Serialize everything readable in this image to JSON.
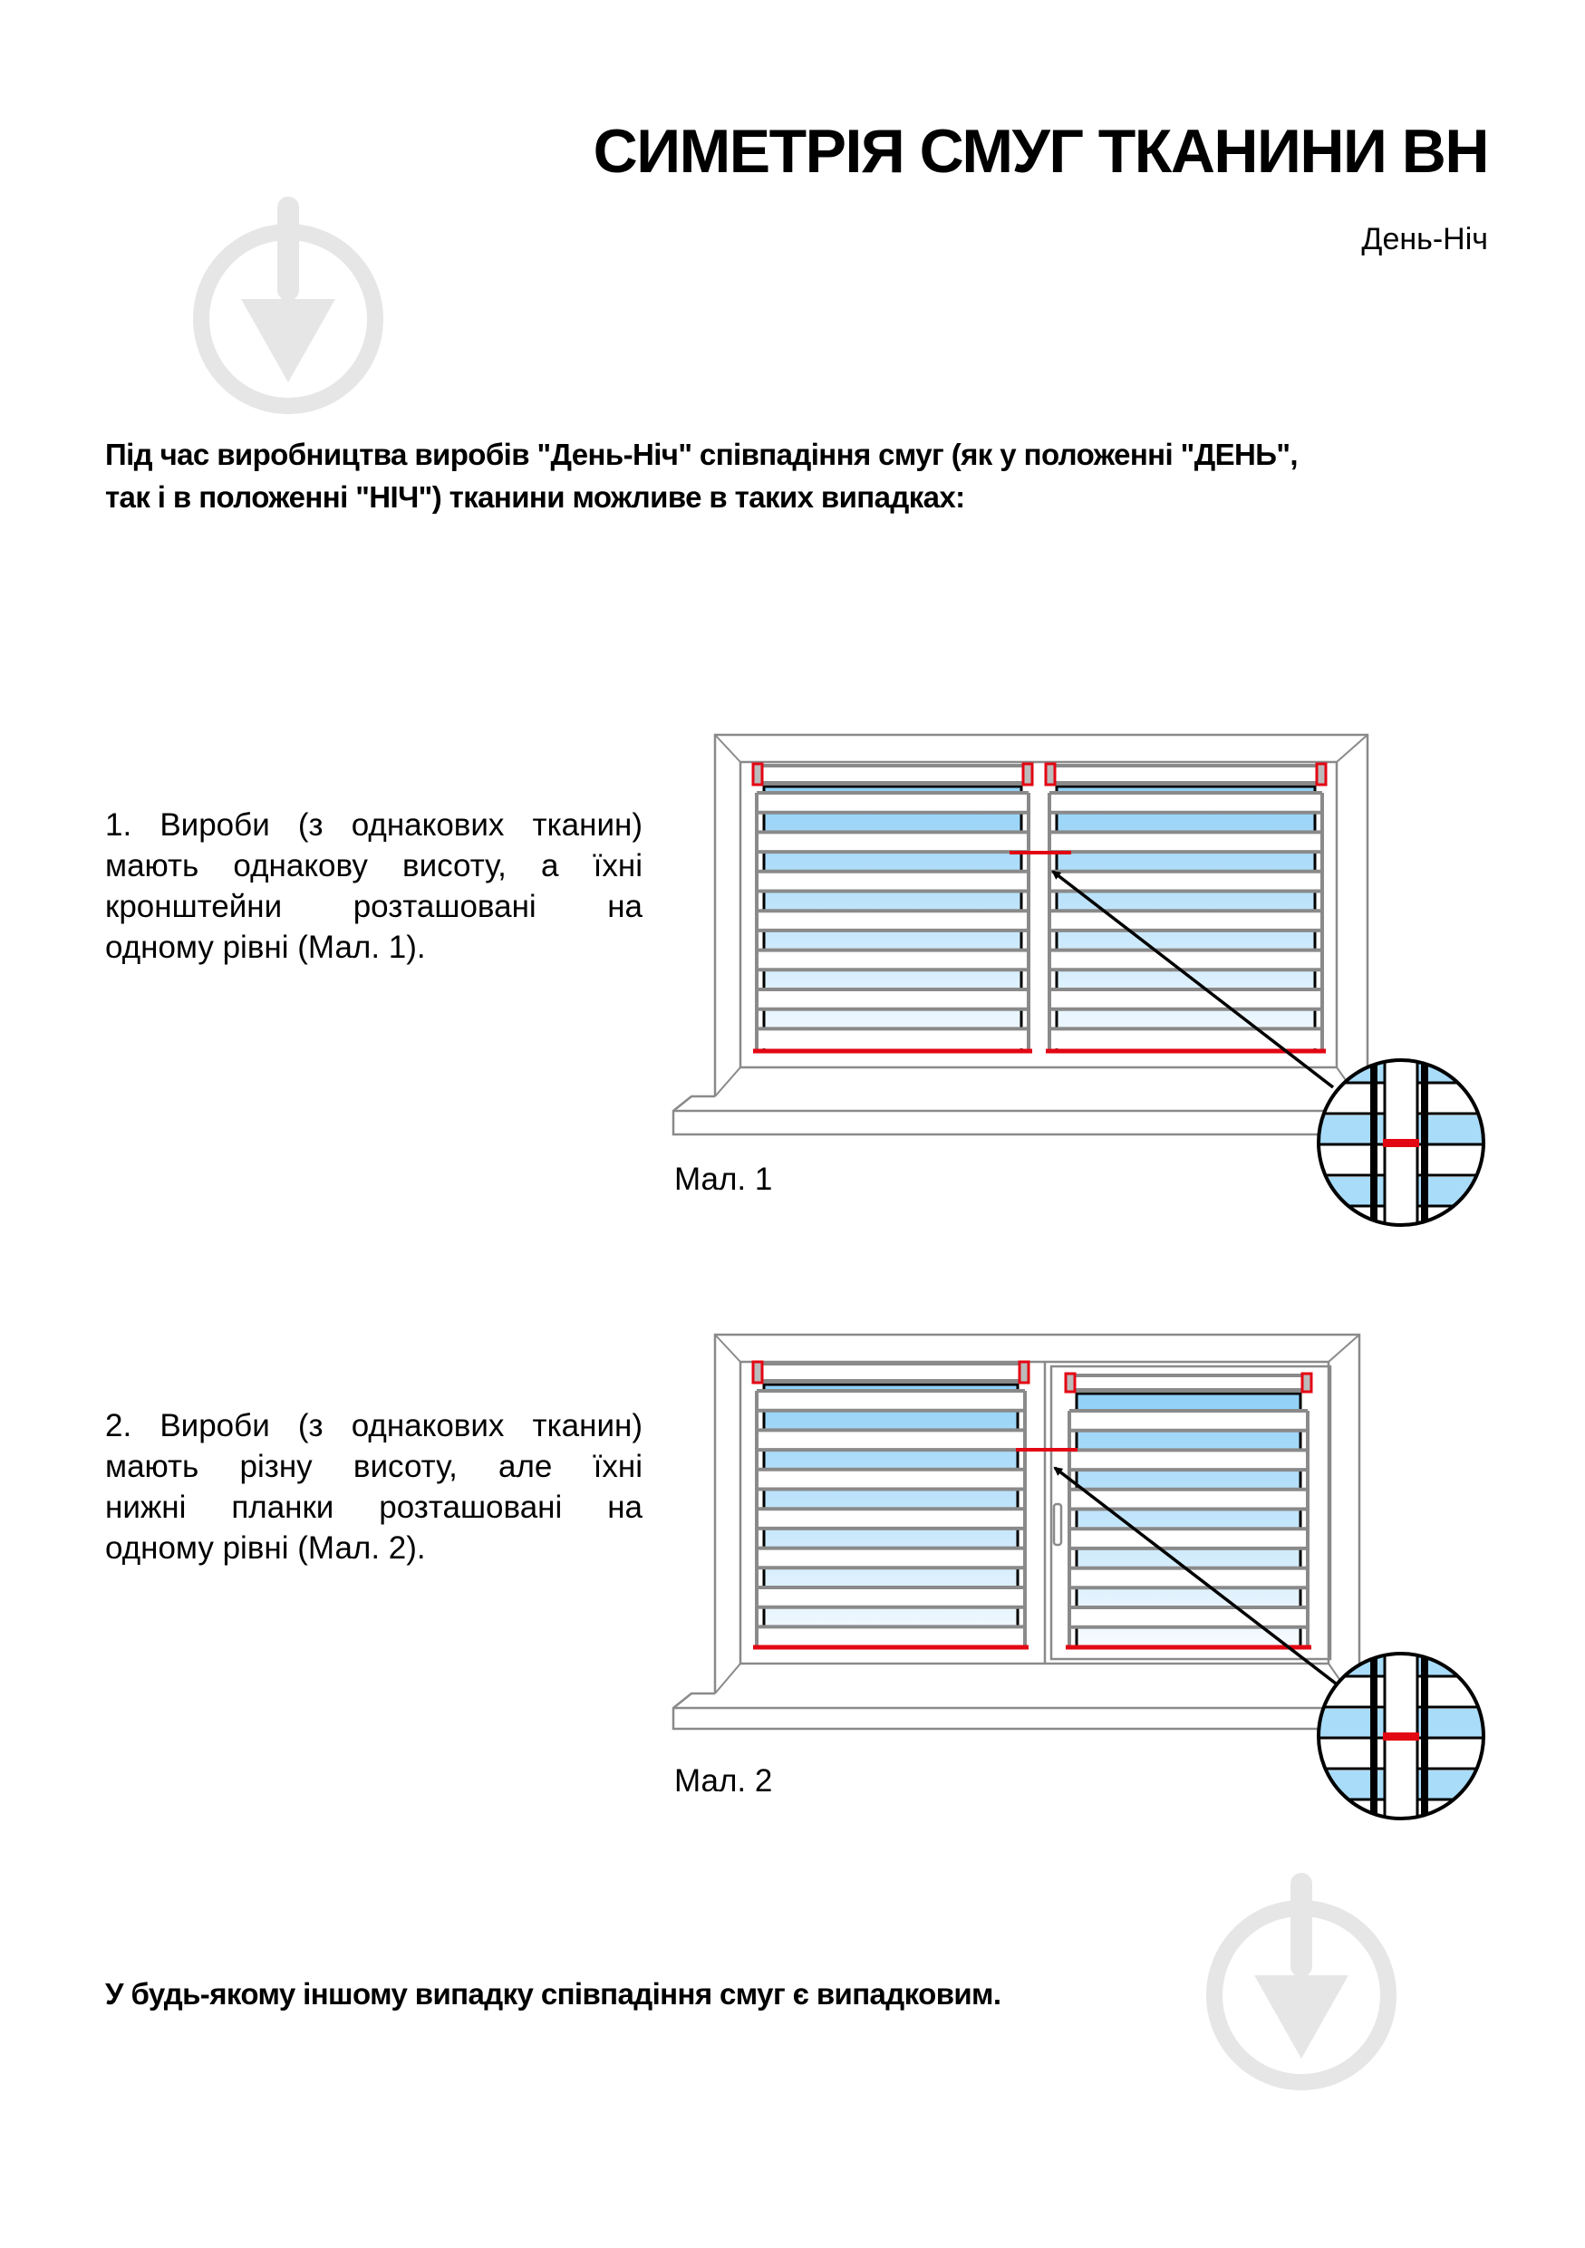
{
  "header": {
    "title": "СИМЕТРІЯ СМУГ ТКАНИНИ ВН",
    "subtitle": "День-Ніч"
  },
  "intro": {
    "lines": [
      "Під час виробництва виробів \"День-Ніч\" співпадіння смуг (як у положенні \"ДЕНЬ\",",
      "так і в положенні \"НІЧ\") тканини можливе в таких випадках:"
    ]
  },
  "cases": [
    {
      "lines": [
        "1. Вироби (з однакових тканин)",
        "мають однакову висоту, а їхні",
        "кронштейни розташовані на",
        "одному рівні (Мал. 1)."
      ],
      "figure_label": "Мал. 1"
    },
    {
      "lines": [
        "2. Вироби (з однакових тканин)",
        "мають різну висоту, але їхні",
        "нижні планки розташовані на",
        "одному рівні (Мал. 2)."
      ],
      "figure_label": "Мал. 2"
    }
  ],
  "outro": "У будь-якому іншому випадку співпадіння смуг є випадковим.",
  "colors": {
    "frame": "#8a8a8a",
    "accent_red": "#e30613",
    "fabric_blue": "#8fd0f7",
    "watermark": "#e6e6e6"
  },
  "icons": [
    "watermark-logo-icon",
    "magnifier-detail-icon",
    "arrow-icon",
    "window-handle-icon"
  ]
}
